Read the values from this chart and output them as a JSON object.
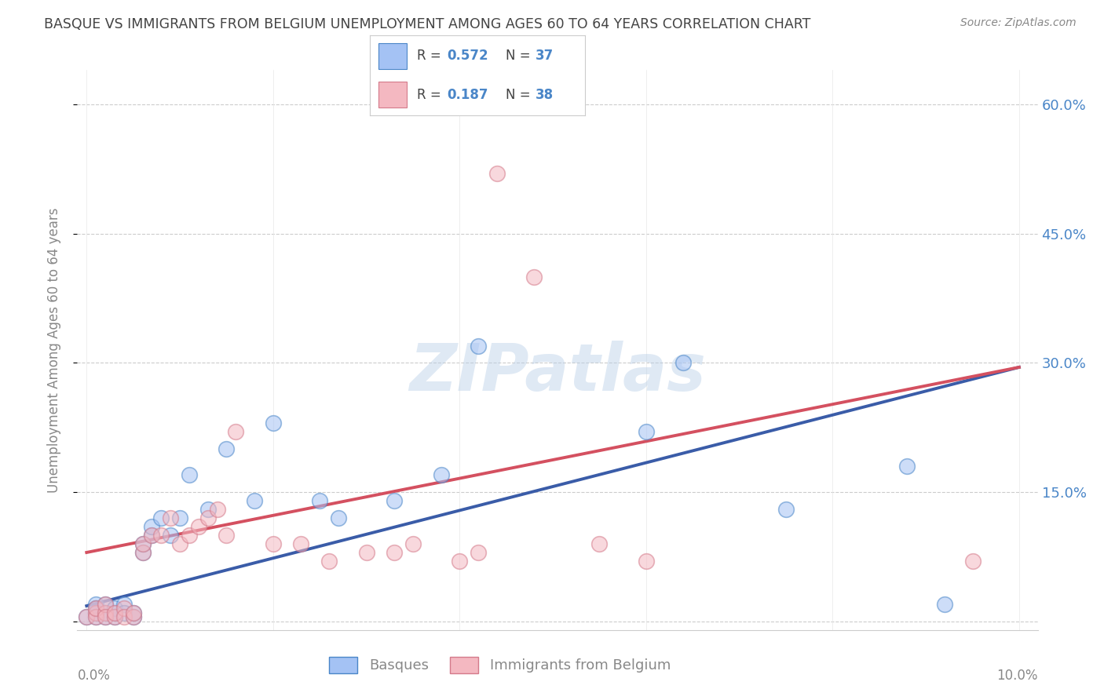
{
  "title": "BASQUE VS IMMIGRANTS FROM BELGIUM UNEMPLOYMENT AMONG AGES 60 TO 64 YEARS CORRELATION CHART",
  "source": "Source: ZipAtlas.com",
  "ylabel": "Unemployment Among Ages 60 to 64 years",
  "yticks": [
    0.0,
    0.15,
    0.3,
    0.45,
    0.6
  ],
  "ytick_labels": [
    "",
    "15.0%",
    "30.0%",
    "45.0%",
    "60.0%"
  ],
  "xticks": [
    0.0,
    0.02,
    0.04,
    0.06,
    0.08,
    0.1
  ],
  "xlim": [
    -0.001,
    0.102
  ],
  "ylim": [
    -0.01,
    0.64
  ],
  "legend_r1": "0.572",
  "legend_n1": "37",
  "legend_r2": "0.187",
  "legend_n2": "38",
  "color_blue": "#a4c2f4",
  "color_pink": "#f4b8c1",
  "color_blue_dark": "#4a86c8",
  "color_pink_dark": "#d47a8a",
  "color_line_blue": "#3a5ca8",
  "color_line_pink": "#d45060",
  "color_title": "#444444",
  "color_source": "#888888",
  "color_ylabel": "#888888",
  "color_tick_right": "#4a86c8",
  "basque_x": [
    0.0,
    0.001,
    0.001,
    0.001,
    0.001,
    0.002,
    0.002,
    0.002,
    0.003,
    0.003,
    0.003,
    0.004,
    0.004,
    0.005,
    0.005,
    0.006,
    0.006,
    0.007,
    0.007,
    0.008,
    0.009,
    0.01,
    0.011,
    0.013,
    0.015,
    0.018,
    0.02,
    0.025,
    0.027,
    0.033,
    0.038,
    0.042,
    0.06,
    0.064,
    0.075,
    0.088,
    0.092
  ],
  "basque_y": [
    0.005,
    0.01,
    0.02,
    0.005,
    0.015,
    0.01,
    0.02,
    0.005,
    0.01,
    0.015,
    0.005,
    0.02,
    0.01,
    0.005,
    0.01,
    0.08,
    0.09,
    0.1,
    0.11,
    0.12,
    0.1,
    0.12,
    0.17,
    0.13,
    0.2,
    0.14,
    0.23,
    0.14,
    0.12,
    0.14,
    0.17,
    0.32,
    0.22,
    0.3,
    0.13,
    0.18,
    0.02
  ],
  "belgium_x": [
    0.0,
    0.001,
    0.001,
    0.001,
    0.002,
    0.002,
    0.002,
    0.003,
    0.003,
    0.004,
    0.004,
    0.005,
    0.005,
    0.006,
    0.006,
    0.007,
    0.008,
    0.009,
    0.01,
    0.011,
    0.012,
    0.013,
    0.014,
    0.015,
    0.016,
    0.02,
    0.023,
    0.026,
    0.03,
    0.033,
    0.035,
    0.04,
    0.042,
    0.044,
    0.048,
    0.055,
    0.06,
    0.095
  ],
  "belgium_y": [
    0.005,
    0.01,
    0.005,
    0.015,
    0.01,
    0.02,
    0.005,
    0.005,
    0.01,
    0.015,
    0.005,
    0.005,
    0.01,
    0.08,
    0.09,
    0.1,
    0.1,
    0.12,
    0.09,
    0.1,
    0.11,
    0.12,
    0.13,
    0.1,
    0.22,
    0.09,
    0.09,
    0.07,
    0.08,
    0.08,
    0.09,
    0.07,
    0.08,
    0.52,
    0.4,
    0.09,
    0.07,
    0.07
  ],
  "blue_line_x": [
    0.0,
    0.1
  ],
  "blue_line_y": [
    0.018,
    0.295
  ],
  "pink_line_x": [
    0.0,
    0.1
  ],
  "pink_line_y": [
    0.08,
    0.295
  ]
}
